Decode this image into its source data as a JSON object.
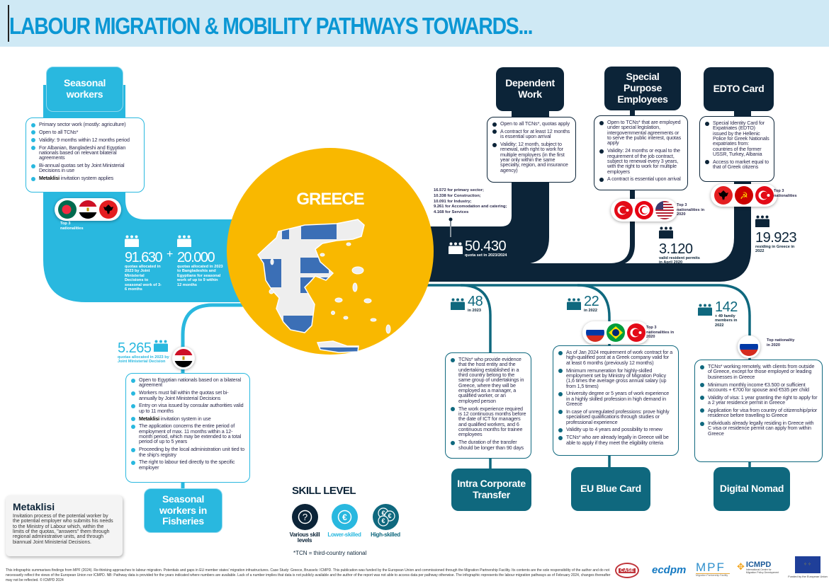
{
  "header": {
    "title": "LABOUR MIGRATION & MOBILITY PATHWAYS TOWARDS..."
  },
  "colors": {
    "seasonal": "#29b8df",
    "dark": "#0c2438",
    "teal": "#0f687e",
    "greece": "#f9b800",
    "title": "#0b97d4"
  },
  "greece": {
    "label": "GREECE"
  },
  "seasonal": {
    "label": "Seasonal workers",
    "items": [
      {
        "text": "Primary sector work (mostly: agriculture)"
      },
      {
        "text": "Open to all TCNs*"
      },
      {
        "text": "Validity: 9 months within 12 months period"
      },
      {
        "text": "For Albanian, Bangladeshi and Egyptian nationals based on relevant bilateral agreements"
      },
      {
        "text": "Bi-annual quotas set by Joint Ministerial Decisions in use"
      },
      {
        "bold": "Metaklisi",
        "text": " invitation system applies"
      }
    ],
    "flags": [
      "bangladesh",
      "egypt",
      "albania"
    ],
    "flags_caption": "Top 3 nationalities",
    "stat1": {
      "value": "91.630",
      "caption": "quotas allocated in 2023 by Joint Ministerial Decisions to seasonal work of 3-6 months"
    },
    "plus": "+",
    "stat2": {
      "value": "20.000",
      "caption": "quotas allocated in 2023 to Bangladeshis and Egyptians for seasonal work of up to 9 within 12 months"
    }
  },
  "dependent": {
    "label": "Dependent Work",
    "items": [
      {
        "text": "Open to all TCNs*, quotas apply"
      },
      {
        "text": "A contract for at least 12 months is essential upon arrival"
      },
      {
        "text": "Validity: 12 month, subject to renewal, with right to work for multiple employers (in the first year only within the same specialty, region, and insurance agency)"
      }
    ],
    "breakdown": [
      "16.572 for primary sector;",
      "10.338 for Construction;",
      "10.091 for Industry;",
      "9.261 for Accomodation and catering;",
      "4.168 for Services"
    ],
    "stat": {
      "value": "50.430",
      "caption": "quota set in 2023/2024"
    }
  },
  "special": {
    "label": "Special Purpose Employees",
    "items": [
      {
        "text": "Open to TCNs* that are employed under special legislation, intergovernmental agreements or to serve the public interest, quotas apply"
      },
      {
        "text": "Validity: 24 months or equal to the requirement of the job contract, subject to renewal every 3 years, with the right to work for multiple employers"
      },
      {
        "text": "A contract is essential upon arrival"
      }
    ],
    "flags": [
      "turkey",
      "tunisia",
      "usa"
    ],
    "flags_caption": "Top 3 nationalities in 2020",
    "stat": {
      "value": "3.120",
      "caption": "valid resident permits in April 2020"
    }
  },
  "edto": {
    "label": "EDTO Card",
    "items": [
      {
        "text": "Special Identity Card for Expatriates (EDTO) issued by the Hellenic Police for Greek Nationals expatriates from: countries of the former USSR, Turkey, Albania"
      },
      {
        "text": "Access to market equal to that of Greek citizens"
      }
    ],
    "flags": [
      "albania",
      "ussr",
      "turkey"
    ],
    "flags_caption": "Top 3 nationalities",
    "stat": {
      "value": "19.923",
      "caption": "residing in Greece in 2022"
    }
  },
  "ict": {
    "label": "Intra Corporate Transfer",
    "stat": {
      "value": "48",
      "caption": "in 2023"
    },
    "items": [
      {
        "text": "TCNs* who provide evidence that the host entity and the undertaking established in a third country belong to the same group of undertakings in Greece, where they will be employed as a manager, a qualified worker, or an employed person"
      },
      {
        "text": "The work experience required is 12 continuous months before the date of ICT for managers and qualified workers, and 6 continuous months for trainee employees"
      },
      {
        "text": "The duration of the transfer should be longer than 90 days"
      }
    ]
  },
  "bluecard": {
    "label": "EU Blue Card",
    "stat": {
      "value": "22",
      "caption": "in 2022"
    },
    "flags": [
      "russia",
      "brazil",
      "turkey"
    ],
    "flags_caption": "Top 3 nationalities in 2020",
    "items": [
      {
        "text": "As of Jan 2024 requirement of work contract for a high-qualified post at a Greek company valid for at least 6 months (previously 12 months)"
      },
      {
        "text": "Minimum remuneration for highly-skilled employment set by Ministry of Migration Policy (1,6 times the average gross annual salary (up from 1,5 times)"
      },
      {
        "text": "University degree or 5 years of work experience in a highly skilled profession in high demand in Greece"
      },
      {
        "text": "In case of unregulated professions: prove highly specialised qualifications through studies or professional experience"
      },
      {
        "text": "Validity up to 4 years and possibility to renew"
      },
      {
        "text": "TCNs* who are already legally in Greece will be able to apply if they meet the eligibility criteria"
      }
    ]
  },
  "nomad": {
    "label": "Digital Nomad",
    "stat": {
      "value": "142",
      "caption": "+ 49 family members in 2022"
    },
    "flags": [
      "russia"
    ],
    "flags_caption": "Top nationality in 2020",
    "items": [
      {
        "text": "TCNs* working remotely, with clients from outside of Greece, except for those employed or leading businesses in Greece"
      },
      {
        "text": "Minimum monthly income €3.500 or sufficient accounts + €700 for spouse and €535 per child"
      },
      {
        "text": "Validity of visa: 1 year granting the right to apply for a 2 year residence permit in Greece"
      },
      {
        "text": "Application for visa from country of citizenship/prior residence before travelling to Greece"
      },
      {
        "text": "Individuals already legally residing in Greece with C visa or residence permit can apply from within Greece"
      }
    ]
  },
  "fisheries": {
    "label": "Seasonal workers in Fisheries",
    "stat": {
      "value": "5.265",
      "caption": "quotas allocated in 2023 by Joint Ministerial Decision"
    },
    "flags": [
      "egypt"
    ],
    "items": [
      {
        "text": "Open to Egyptian nationals based on a bilateral agreement"
      },
      {
        "text": "Workers must fall within the quotas set bi-annually by Joint Ministerial Decisions"
      },
      {
        "text": "Entry on visa issued by consular authorities valid up to 11 months"
      },
      {
        "bold": "Metaklisi",
        "text": " invitation system in use"
      },
      {
        "text": "The application concerns the entire period of employment of max. 11 months within a 12-month period, which may be extended to a total period of up to 5 years"
      },
      {
        "text": "Proceeding by the local administration unit tied to the ship's registry"
      },
      {
        "text": "The right to labour tied directly to the specific employer"
      }
    ]
  },
  "metaklisi": {
    "title": "Metaklisi",
    "text": "Invitation process of the potential worker by the potential employer who submits his needs to the Ministry of Labour which, within the limits of the quotas, \"answers\" them through regional administrative units, and through biannual Joint Ministerial Decisions."
  },
  "skill": {
    "title": "SKILL LEVEL",
    "levels": [
      {
        "label": "Various skill levels",
        "icon": "question-icon",
        "color": "#0c2438"
      },
      {
        "label": "Lower-skilled",
        "icon": "euro-coin-icon",
        "color": "#29b8df"
      },
      {
        "label": "High-skilled",
        "icon": "euro-coins-icon",
        "color": "#0f687e"
      }
    ],
    "note": "*TCN = third-country national"
  },
  "footer": {
    "text": "This infographic summarises findings from MPF (2024). Re-thinking approaches to labour migration. Potentials and gaps in EU member states' migration infrastructures. Case Study: Greece, Brussels: ICMPD. This publication was funded by the European Union and commissioned through the Migration Partnership Facility. Its contents are the sole responsibility of the author and do not necessarily reflect the views of the European Union nor ICMPD. NB: Pathway data is provided for the years indicated where numbers are available. Lack of a number implies that data is not publicly available and the author of the report was not able to access data per pathway otherwise. The infographic represents the labour migration pathways as of February 2024, changes thereafter may not be reflected. © ICMPD 2024"
  },
  "logos": {
    "case": "CASE",
    "ecdpm": "ecdpm",
    "mpf": "MPF",
    "mpf_sub": "Migration Partnership Facility",
    "icmpd": "ICMPD",
    "icmpd_sub": "International Centre for Migration Policy Development",
    "eu": "Funded by the European Union"
  }
}
